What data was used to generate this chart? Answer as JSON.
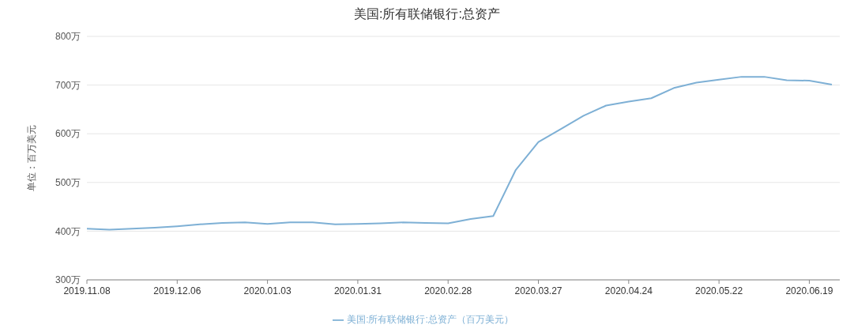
{
  "chart_data": {
    "type": "line",
    "title": "美国:所有联储银行:总资产",
    "ylabel": "单位：百万美元",
    "categories": [
      "2019.11.08",
      null,
      null,
      null,
      "2019.12.06",
      null,
      null,
      null,
      "2020.01.03",
      null,
      null,
      null,
      "2020.01.31",
      null,
      null,
      null,
      "2020.02.28",
      null,
      null,
      null,
      "2020.03.27",
      null,
      null,
      null,
      "2020.04.24",
      null,
      null,
      null,
      "2020.05.22",
      null,
      null,
      null,
      "2020.06.19",
      null
    ],
    "series": [
      {
        "name": "美国:所有联储银行:总资产（百万美元）",
        "color": "#7eb0d5",
        "values": [
          405,
          403,
          405,
          407,
          410,
          414,
          417,
          418,
          415,
          418,
          418,
          414,
          415,
          416,
          418,
          417,
          416,
          425,
          431,
          526,
          583,
          610,
          637,
          658,
          666,
          673,
          694,
          705,
          711,
          717,
          717,
          710,
          709,
          701
        ]
      }
    ],
    "ylim": [
      300,
      800
    ],
    "yticks": [
      {
        "value": 300,
        "label": "300万"
      },
      {
        "value": 400,
        "label": "400万"
      },
      {
        "value": 500,
        "label": "500万"
      },
      {
        "value": 600,
        "label": "600万"
      },
      {
        "value": 700,
        "label": "700万"
      },
      {
        "value": 800,
        "label": "800万"
      }
    ],
    "grid": "y",
    "legend": "bottom",
    "marker": "none",
    "line_style": "solid"
  }
}
